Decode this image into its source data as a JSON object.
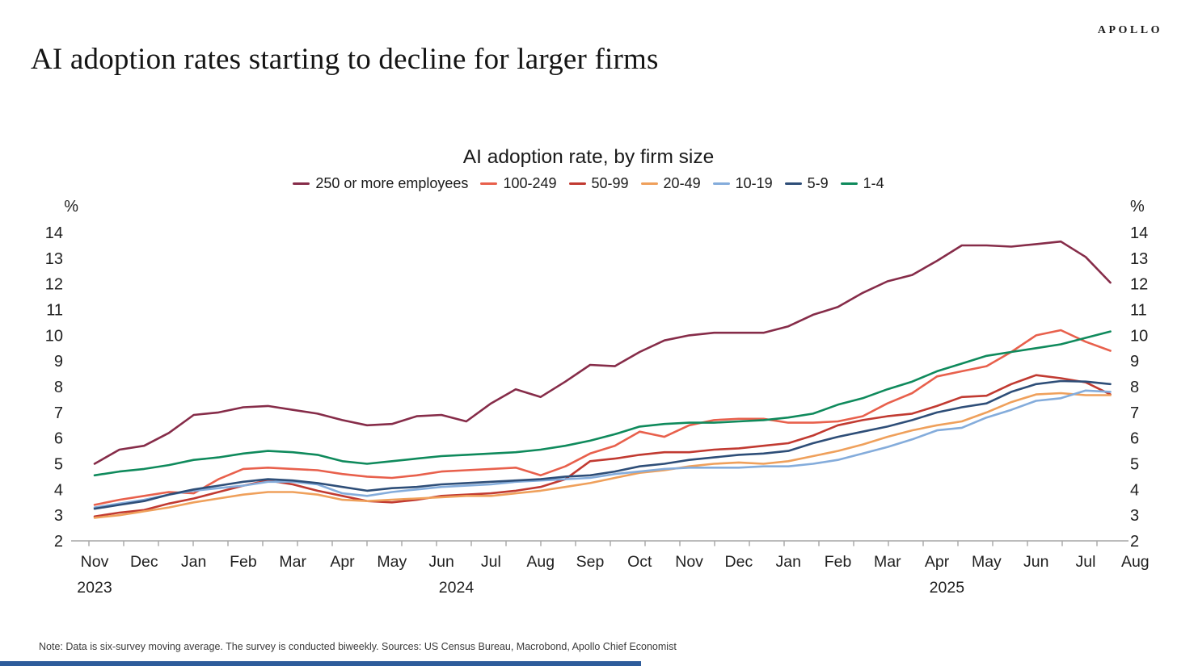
{
  "brand": {
    "logo_text": "APOLLO"
  },
  "page_title": "AI adoption rates starting to decline for larger firms",
  "note": "Note: Data is six-survey moving average. The survey is conducted biweekly. Sources: US Census Bureau, Macrobond, Apollo Chief Economist",
  "chart_data": {
    "type": "line",
    "title": "AI adoption rate, by firm size",
    "unit_label": "%",
    "ylim": [
      2,
      14
    ],
    "yticks": [
      2,
      3,
      4,
      5,
      6,
      7,
      8,
      9,
      10,
      11,
      12,
      13,
      14
    ],
    "grid": false,
    "legend_position": "top",
    "points_per_month": 2,
    "x_month_labels": [
      "Nov",
      "Dec",
      "Jan",
      "Feb",
      "Mar",
      "Apr",
      "May",
      "Jun",
      "Jul",
      "Aug",
      "Sep",
      "Oct",
      "Nov",
      "Dec",
      "Jan",
      "Feb",
      "Mar",
      "Apr",
      "May",
      "Jun",
      "Jul",
      "Aug"
    ],
    "year_labels": [
      {
        "text": "2023",
        "month_index": 0
      },
      {
        "text": "2024",
        "month_index": 7.3
      },
      {
        "text": "2025",
        "month_index": 17.2
      }
    ],
    "series": [
      {
        "name": "250 or more employees",
        "color": "#862c49",
        "values": [
          5.0,
          5.55,
          5.7,
          6.2,
          6.9,
          7.0,
          7.2,
          7.25,
          7.1,
          6.95,
          6.7,
          6.5,
          6.55,
          6.85,
          6.9,
          6.65,
          7.35,
          7.9,
          7.6,
          8.2,
          8.85,
          8.8,
          9.35,
          9.8,
          10.0,
          10.1,
          10.1,
          10.1,
          10.35,
          10.8,
          11.1,
          11.65,
          12.1,
          12.35,
          12.9,
          13.5,
          13.5,
          13.45,
          13.55,
          13.65,
          13.05,
          12.05
        ]
      },
      {
        "name": "100-249",
        "color": "#e8604c",
        "values": [
          3.4,
          3.6,
          3.75,
          3.9,
          3.85,
          4.4,
          4.8,
          4.85,
          4.8,
          4.75,
          4.6,
          4.5,
          4.45,
          4.55,
          4.7,
          4.75,
          4.8,
          4.85,
          4.55,
          4.9,
          5.4,
          5.7,
          6.25,
          6.05,
          6.5,
          6.7,
          6.75,
          6.75,
          6.6,
          6.6,
          6.65,
          6.85,
          7.35,
          7.75,
          8.4,
          8.6,
          8.8,
          9.35,
          10.0,
          10.2,
          9.75,
          9.4
        ]
      },
      {
        "name": "50-99",
        "color": "#c13a31",
        "values": [
          2.95,
          3.1,
          3.2,
          3.45,
          3.65,
          3.9,
          4.15,
          4.35,
          4.2,
          3.95,
          3.75,
          3.55,
          3.5,
          3.6,
          3.75,
          3.8,
          3.85,
          3.95,
          4.1,
          4.4,
          5.1,
          5.2,
          5.35,
          5.45,
          5.45,
          5.55,
          5.6,
          5.7,
          5.8,
          6.1,
          6.5,
          6.7,
          6.85,
          6.95,
          7.25,
          7.6,
          7.65,
          8.1,
          8.45,
          8.33,
          8.17,
          7.7
        ]
      },
      {
        "name": "20-49",
        "color": "#efa05b",
        "values": [
          2.9,
          3.0,
          3.15,
          3.3,
          3.5,
          3.65,
          3.8,
          3.9,
          3.9,
          3.8,
          3.6,
          3.55,
          3.6,
          3.65,
          3.7,
          3.75,
          3.75,
          3.85,
          3.95,
          4.1,
          4.25,
          4.45,
          4.65,
          4.75,
          4.9,
          5.0,
          5.05,
          5.0,
          5.1,
          5.3,
          5.5,
          5.75,
          6.05,
          6.3,
          6.5,
          6.65,
          7.0,
          7.4,
          7.7,
          7.75,
          7.67,
          7.67
        ]
      },
      {
        "name": "10-19",
        "color": "#84acdb",
        "values": [
          3.3,
          3.45,
          3.6,
          3.8,
          3.95,
          4.05,
          4.15,
          4.3,
          4.3,
          4.2,
          3.85,
          3.75,
          3.9,
          4.0,
          4.1,
          4.15,
          4.2,
          4.3,
          4.35,
          4.4,
          4.45,
          4.6,
          4.7,
          4.8,
          4.85,
          4.85,
          4.85,
          4.9,
          4.9,
          5.0,
          5.15,
          5.4,
          5.65,
          5.95,
          6.3,
          6.4,
          6.8,
          7.1,
          7.45,
          7.55,
          7.85,
          7.8
        ]
      },
      {
        "name": "5-9",
        "color": "#2e4e78",
        "values": [
          3.25,
          3.4,
          3.55,
          3.8,
          4.0,
          4.15,
          4.3,
          4.4,
          4.35,
          4.25,
          4.1,
          3.95,
          4.05,
          4.1,
          4.2,
          4.25,
          4.3,
          4.35,
          4.4,
          4.5,
          4.55,
          4.7,
          4.9,
          5.0,
          5.15,
          5.25,
          5.35,
          5.4,
          5.5,
          5.8,
          6.05,
          6.25,
          6.45,
          6.7,
          7.0,
          7.2,
          7.35,
          7.8,
          8.1,
          8.22,
          8.2,
          8.1
        ]
      },
      {
        "name": "1-4",
        "color": "#0f8a5c",
        "values": [
          4.55,
          4.7,
          4.8,
          4.95,
          5.15,
          5.25,
          5.4,
          5.5,
          5.45,
          5.35,
          5.1,
          5.0,
          5.1,
          5.2,
          5.3,
          5.35,
          5.4,
          5.45,
          5.55,
          5.7,
          5.9,
          6.15,
          6.45,
          6.55,
          6.6,
          6.6,
          6.65,
          6.7,
          6.8,
          6.95,
          7.3,
          7.55,
          7.9,
          8.2,
          8.6,
          8.9,
          9.2,
          9.35,
          9.5,
          9.65,
          9.9,
          10.15
        ]
      }
    ]
  }
}
